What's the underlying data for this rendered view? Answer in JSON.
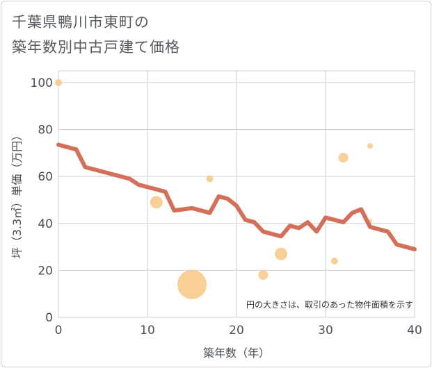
{
  "title_line1": "千葉県鴨川市東町の",
  "title_line2": "築年数別中古戸建て価格",
  "chart_data": {
    "type": "scatter+line",
    "title": "千葉県鴨川市東町の築年数別中古戸建て価格",
    "xlabel": "築年数（年）",
    "ylabel": "坪（3.3㎡）単価（万円）",
    "xlim": [
      0,
      40
    ],
    "ylim": [
      0,
      105
    ],
    "xticks": [
      0,
      10,
      20,
      30,
      40
    ],
    "yticks": [
      0,
      20,
      40,
      60,
      80,
      100
    ],
    "grid": true,
    "note": "円の大きさは、取引のあった物件面積を示す",
    "line_color": "#d4705a",
    "bubble_color": "#f5c580",
    "line": {
      "x": [
        0,
        2,
        3,
        4,
        5,
        6,
        7,
        8,
        9,
        10,
        11,
        12,
        13,
        14,
        15,
        16,
        17,
        18,
        19,
        20,
        21,
        22,
        23,
        24,
        25,
        26,
        27,
        28,
        29,
        30,
        31,
        32,
        33,
        34,
        35,
        36,
        37,
        38,
        39,
        40
      ],
      "y": [
        73.5,
        71.5,
        64,
        63,
        62,
        61,
        60,
        59,
        56.5,
        55.5,
        54.5,
        53.5,
        45.5,
        46,
        46.5,
        45.5,
        44.5,
        51.5,
        50.5,
        47.5,
        41.5,
        40.5,
        36.5,
        35.5,
        34.5,
        39,
        38,
        40.5,
        36.5,
        42.5,
        41.5,
        40.5,
        44.5,
        46,
        38.5,
        37.5,
        36.5,
        31,
        30,
        29
      ]
    },
    "bubbles": [
      {
        "x": 0,
        "y": 100,
        "size": 5
      },
      {
        "x": 11,
        "y": 49,
        "size": 9
      },
      {
        "x": 15,
        "y": 14,
        "size": 21
      },
      {
        "x": 17,
        "y": 59,
        "size": 5
      },
      {
        "x": 23,
        "y": 18,
        "size": 7
      },
      {
        "x": 25,
        "y": 27,
        "size": 9
      },
      {
        "x": 31,
        "y": 24,
        "size": 5
      },
      {
        "x": 32,
        "y": 68,
        "size": 7
      },
      {
        "x": 35,
        "y": 73,
        "size": 4
      },
      {
        "x": 35,
        "y": 41,
        "size": 3
      }
    ]
  }
}
